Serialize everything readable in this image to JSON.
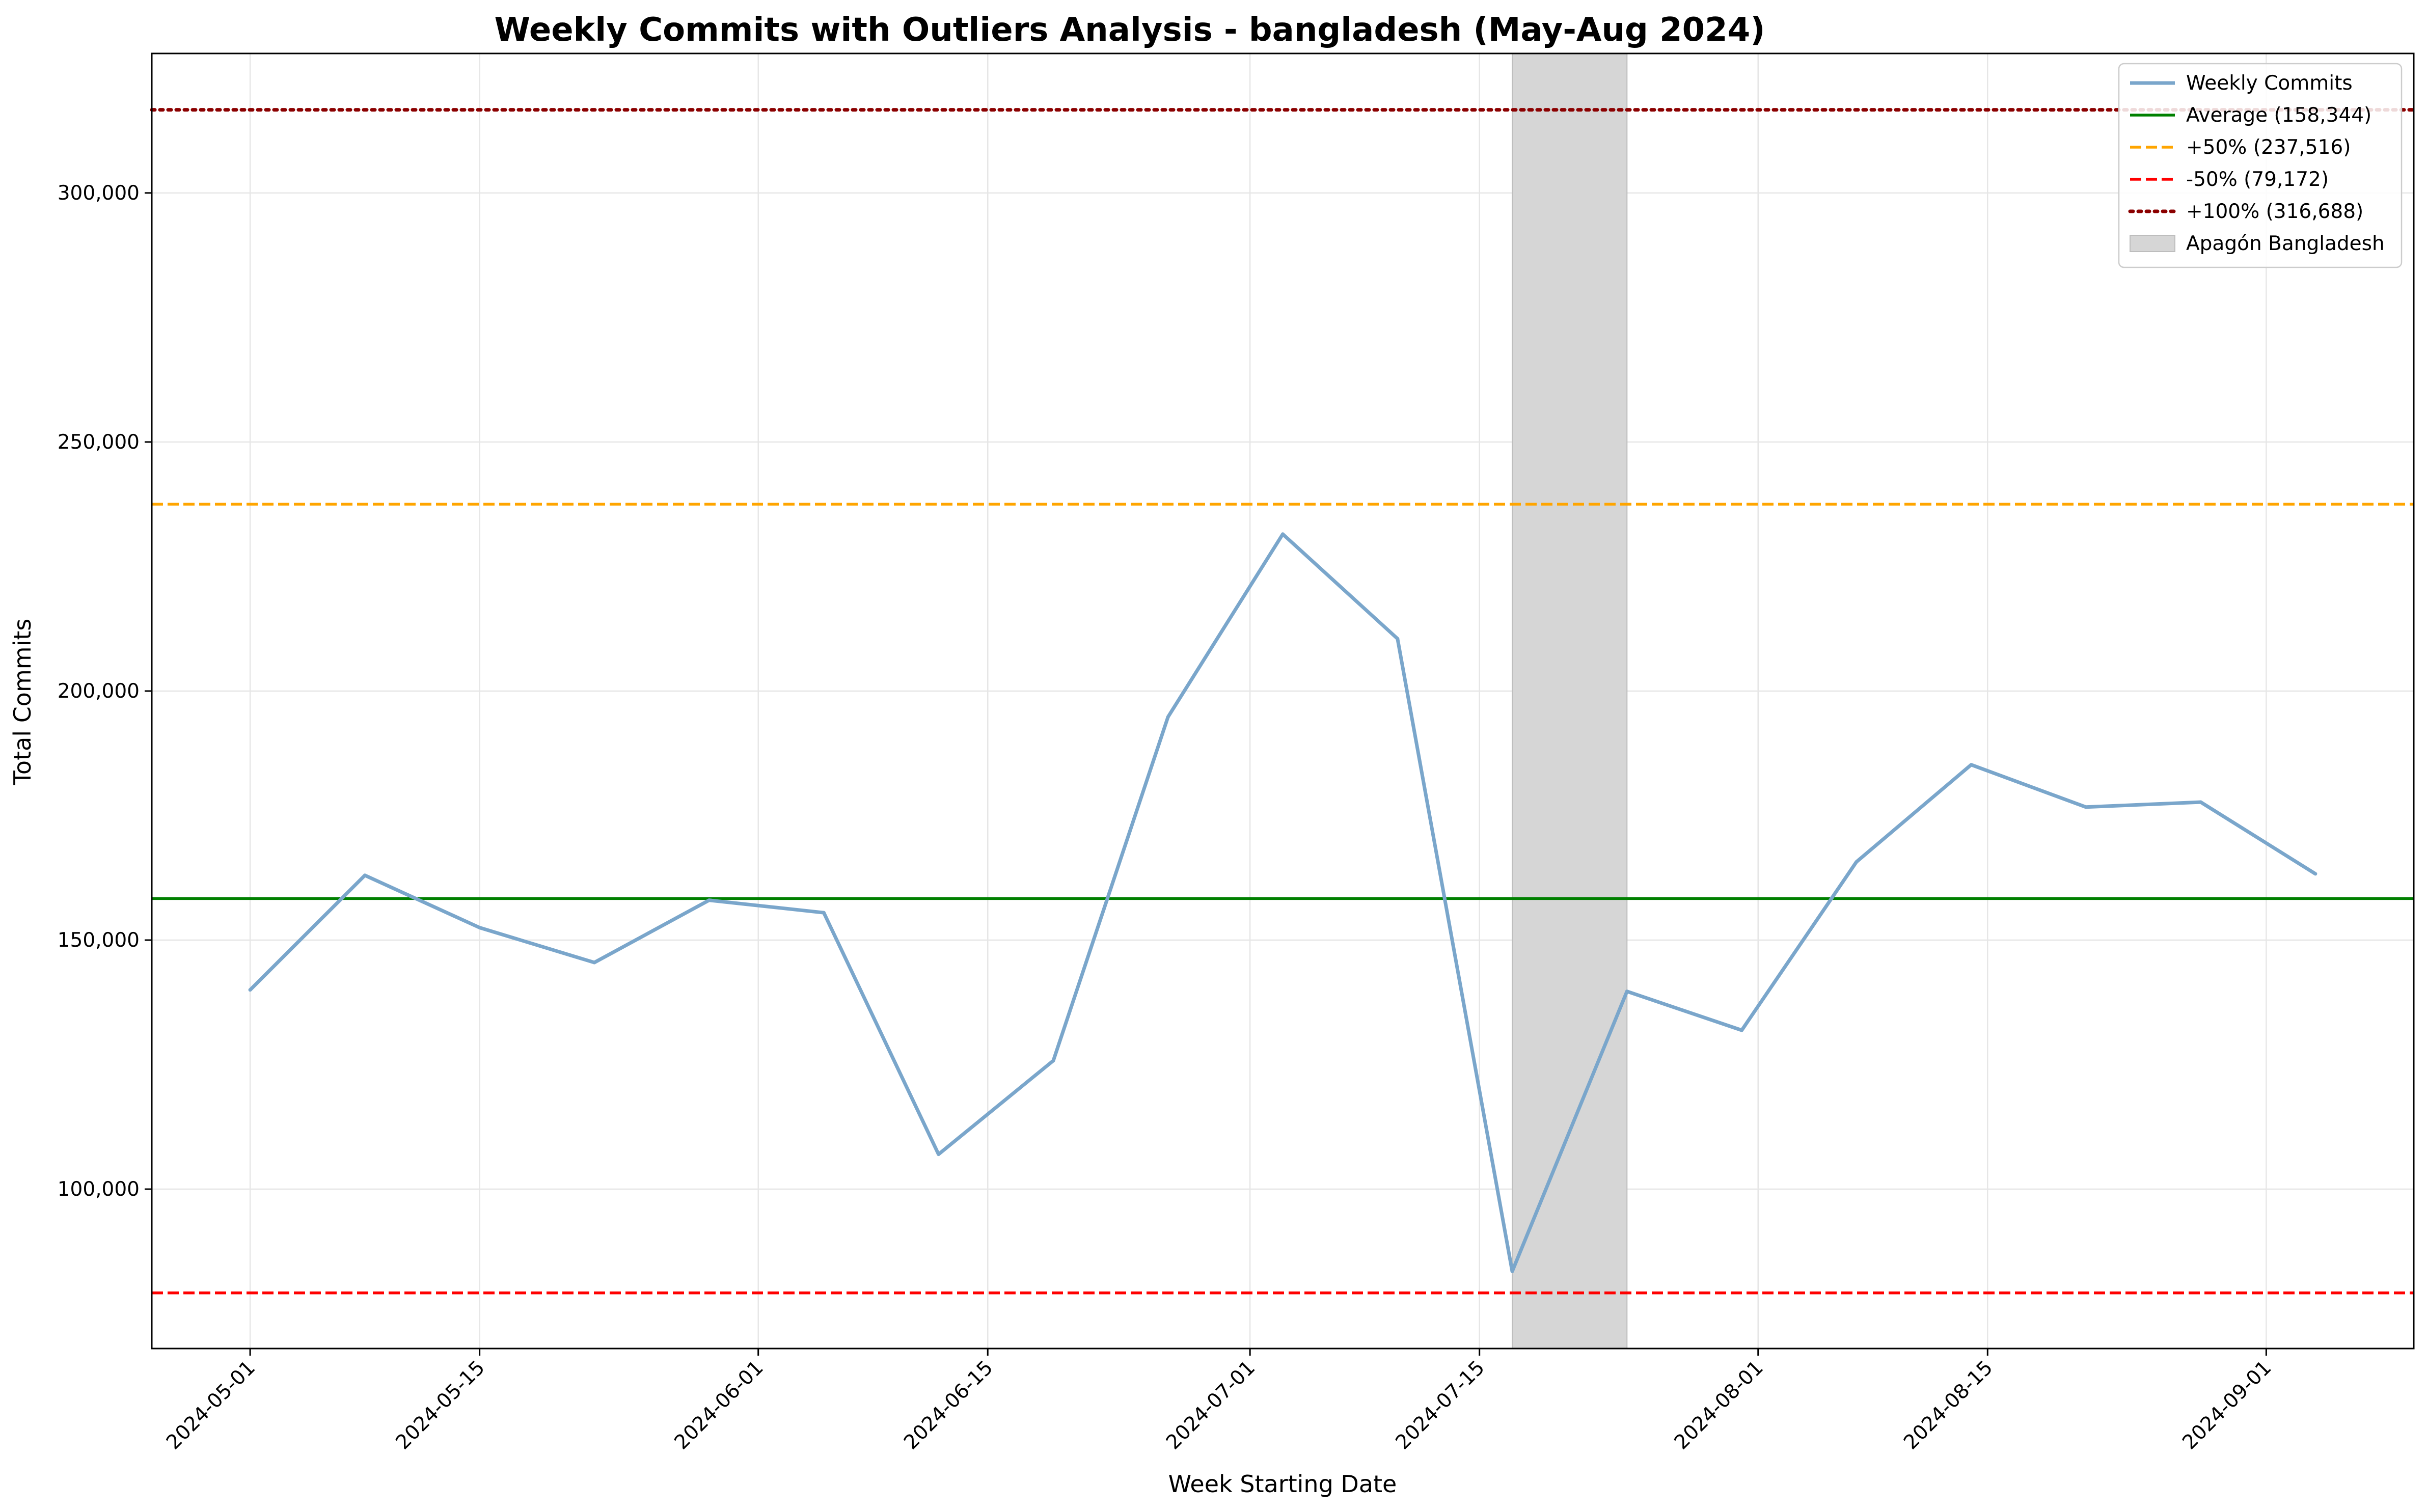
{
  "chart_data": {
    "type": "line",
    "title": "Weekly Commits with Outliers Analysis - bangladesh (May-Aug 2024)",
    "xlabel": "Week Starting Date",
    "ylabel": "Total Commits",
    "x_ticks": [
      "2024-05-01",
      "2024-05-15",
      "2024-06-01",
      "2024-06-15",
      "2024-07-01",
      "2024-07-15",
      "2024-08-01",
      "2024-08-15",
      "2024-09-01"
    ],
    "y_ticks": [
      100000,
      150000,
      200000,
      250000,
      300000
    ],
    "y_tick_labels": [
      "100,000",
      "150,000",
      "200,000",
      "250,000",
      "300,000"
    ],
    "xlim": [
      "2024-04-25",
      "2024-09-10"
    ],
    "ylim": [
      68000,
      328000
    ],
    "grid": true,
    "legend_position": "top-right",
    "series": [
      {
        "name": "Weekly Commits",
        "color": "#7aa6cb",
        "x": [
          "2024-05-01",
          "2024-05-08",
          "2024-05-15",
          "2024-05-22",
          "2024-05-29",
          "2024-06-05",
          "2024-06-12",
          "2024-06-19",
          "2024-06-26",
          "2024-07-03",
          "2024-07-10",
          "2024-07-17",
          "2024-07-24",
          "2024-07-31",
          "2024-08-07",
          "2024-08-14",
          "2024-08-21",
          "2024-08-28",
          "2024-09-04"
        ],
        "values": [
          140000,
          163000,
          152500,
          145500,
          158000,
          155500,
          107000,
          125800,
          194800,
          231500,
          210500,
          83500,
          139700,
          131900,
          165700,
          185200,
          176700,
          177700,
          163300
        ]
      }
    ],
    "reference_lines": [
      {
        "name": "Average (158,344)",
        "value": 158344,
        "color": "#008000",
        "style": "solid"
      },
      {
        "name": "+50% (237,516)",
        "value": 237516,
        "color": "#ffa500",
        "style": "dashed"
      },
      {
        "name": "-50% (79,172)",
        "value": 79172,
        "color": "#ff0000",
        "style": "dashed"
      },
      {
        "name": "+100% (316,688)",
        "value": 316688,
        "color": "#8b0000",
        "style": "dotted"
      }
    ],
    "shaded_region": {
      "name": "Apagón Bangladesh",
      "start": "2024-07-17",
      "end": "2024-07-24",
      "color": "#d6d6d6"
    }
  }
}
